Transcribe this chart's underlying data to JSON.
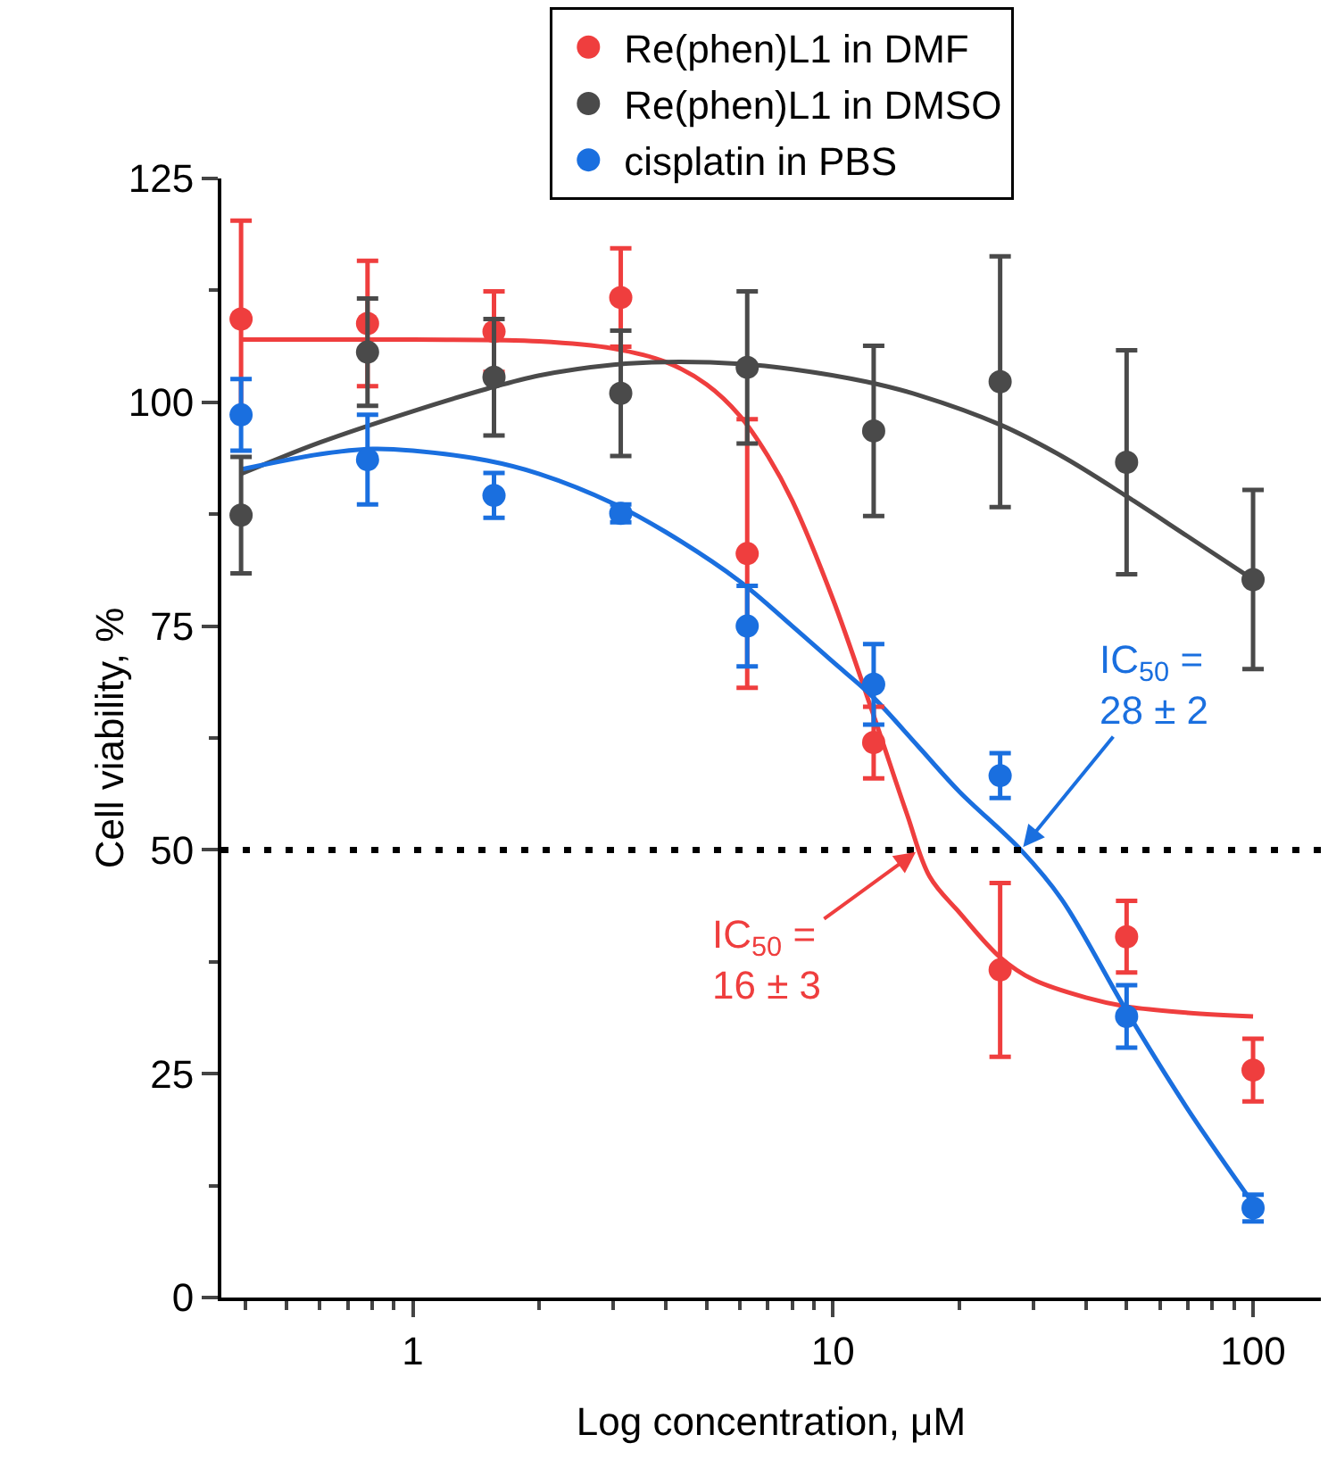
{
  "chart_data": {
    "type": "scatter",
    "xlabel": "Log concentration, μM",
    "ylabel": "Cell viability, %",
    "x": [
      0.39,
      0.78,
      1.56,
      3.125,
      6.25,
      12.5,
      25,
      50,
      100
    ],
    "series": [
      {
        "name": "Re(phen)L1 in DMF",
        "color": "#ef3e3e",
        "values": [
          109.3,
          108.8,
          107.9,
          111.7,
          83.1,
          62,
          36.6,
          40.3,
          25.4
        ],
        "errors": [
          11,
          7,
          4.5,
          5.5,
          15,
          4,
          9.7,
          4,
          3.5
        ]
      },
      {
        "name": "Re(phen)L1 in DMSO",
        "color": "#4a4a4a",
        "values": [
          87.4,
          105.6,
          102.8,
          101,
          103.9,
          96.8,
          102.3,
          93.3,
          80.2
        ],
        "errors": [
          6.5,
          6,
          6.5,
          7,
          8.5,
          9.5,
          14,
          12.5,
          10
        ]
      },
      {
        "name": "cisplatin in PBS",
        "color": "#1a6fdf",
        "values": [
          98.6,
          93.6,
          89.6,
          87.6,
          75,
          68.5,
          58.3,
          31.4,
          10
        ],
        "errors": [
          4,
          5,
          2.5,
          1,
          4.5,
          4.5,
          2.5,
          3.5,
          1.5
        ]
      },
      {
        "type": "line",
        "marker": "none",
        "color": "#ef3e3e",
        "x": [
          0.39,
          1,
          2,
          3,
          4,
          5,
          6,
          7,
          8,
          10,
          12.5,
          15,
          17,
          20,
          25,
          30,
          40,
          50,
          70,
          100
        ],
        "values": [
          107,
          107,
          106.8,
          106,
          104.5,
          102,
          98.5,
          94,
          89,
          78,
          65,
          54,
          47,
          43,
          38,
          35.5,
          33.5,
          32.5,
          31.8,
          31.4
        ]
      },
      {
        "type": "line",
        "marker": "none",
        "color": "#4a4a4a",
        "x": [
          0.39,
          0.6,
          1,
          1.5,
          2,
          3,
          4,
          6,
          8,
          12,
          16,
          25,
          35,
          50,
          70,
          100
        ],
        "values": [
          92,
          95.5,
          99,
          101.5,
          103,
          104.2,
          104.5,
          104.3,
          103.7,
          102.3,
          100.8,
          97.5,
          94,
          89.5,
          85,
          80.2
        ]
      },
      {
        "type": "line",
        "marker": "none",
        "color": "#1a6fdf",
        "x": [
          0.39,
          0.6,
          0.8,
          1,
          1.5,
          2,
          3,
          4,
          6,
          8,
          10,
          12.5,
          16,
          20,
          28,
          35,
          50,
          70,
          100
        ],
        "values": [
          92.5,
          94.2,
          94.8,
          94.6,
          93.5,
          92,
          88.7,
          85.5,
          80,
          75,
          71,
          67,
          61.5,
          56.5,
          50,
          44.5,
          32,
          21,
          10.5
        ]
      }
    ],
    "log": "x",
    "xlim": [
      0.35,
      145
    ],
    "xticks": [
      1,
      10,
      100
    ],
    "ylim": [
      0,
      125
    ],
    "yticks": [
      0,
      25,
      50,
      75,
      100,
      125
    ],
    "grid": false,
    "legend": "top",
    "marker": "circle",
    "ref_lines": [
      {
        "axis": "y",
        "value": 50,
        "color": "#000000",
        "line_style": "dotted"
      }
    ],
    "annotations": [
      {
        "text": "IC$_{50}$ =\n16 ± 3",
        "x": 16,
        "y": 50
      },
      {
        "text": "IC$_{50}$ =\n28 ± 2",
        "x": 28,
        "y": 50
      }
    ]
  }
}
